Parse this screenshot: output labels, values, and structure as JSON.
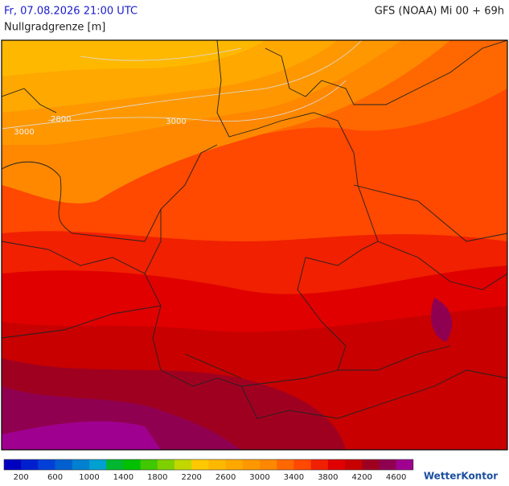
{
  "header": {
    "timestamp": "Fr, 07.08.2026 21:00 UTC",
    "model_run": "GFS (NOAA) Mi 00 + 69h",
    "parameter": "Nullgradgrenze [m]"
  },
  "map": {
    "contour_labels": [
      2800,
      3000,
      3000
    ]
  },
  "legend": {
    "ticks": [
      200,
      600,
      1000,
      1400,
      1800,
      2200,
      2600,
      3000,
      3400,
      3800,
      4200,
      4600
    ],
    "colors": [
      "#0000c0",
      "#0020d0",
      "#0040d8",
      "#0060d0",
      "#0080d0",
      "#00a0d0",
      "#00b830",
      "#00c000",
      "#40c800",
      "#80d000",
      "#c0d800",
      "#ffc800",
      "#ffb800",
      "#ffa800",
      "#ff9800",
      "#ff8800",
      "#ff6800",
      "#ff4800",
      "#f02000",
      "#e00000",
      "#c80000",
      "#a00020",
      "#900050",
      "#a00090"
    ]
  },
  "logo": "WetterKontor"
}
